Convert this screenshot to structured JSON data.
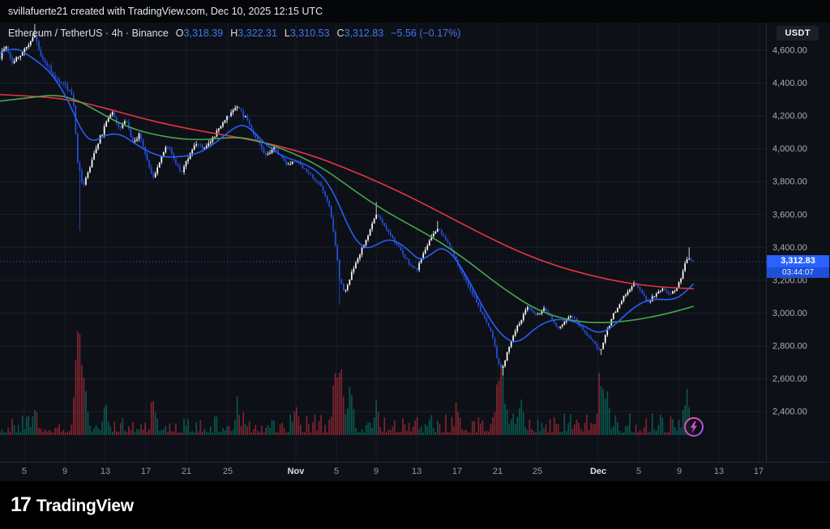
{
  "top_bar": {
    "attribution": "svillafuerte21 created with TradingView.com, Dec 10, 2025 12:15 UTC"
  },
  "legend": {
    "title": "Ethereum / TetherUS · 4h · Binance",
    "ohlc": [
      {
        "label": "O",
        "value": "3,318.39"
      },
      {
        "label": "H",
        "value": "3,322.31"
      },
      {
        "label": "L",
        "value": "3,310.53"
      },
      {
        "label": "C",
        "value": "3,312.83"
      }
    ],
    "change": "−5.56 (−0.17%)"
  },
  "price_axis": {
    "currency_button": "USDT",
    "last_price": {
      "label": "3,312.83",
      "value": 3312.83,
      "countdown": "03:44:07"
    }
  },
  "footer": {
    "logo_mark": "17",
    "brand": "TradingView"
  },
  "colors": {
    "accent_blue": "#2962ff",
    "candle_up": "#ffffff",
    "candle_down": "#2450e0",
    "ma_fast": "#2962ff",
    "ma_mid": "#4caf50",
    "ma_slow": "#f23645",
    "volume_up": "#089981",
    "volume_down": "#f23645",
    "legend_value": "#4277f2",
    "badge_bg": "#2962ff",
    "countdown_bg": "#1d4fd8"
  },
  "chart_data": {
    "type": "candlestick",
    "title": "Ethereum / TetherUS",
    "interval": "4h",
    "exchange": "Binance",
    "ylim": [
      2400,
      4600
    ],
    "last_candle": {
      "open": 3318.39,
      "high": 3322.31,
      "low": 3310.53,
      "close": 3312.83
    },
    "change": -5.56,
    "change_pct": -0.17,
    "price_ticks": [
      {
        "value": 4600,
        "label": "4,600.00"
      },
      {
        "value": 4400,
        "label": "4,400.00"
      },
      {
        "value": 4200,
        "label": "4,200.00"
      },
      {
        "value": 4000,
        "label": "4,000.00"
      },
      {
        "value": 3800,
        "label": "3,800.00"
      },
      {
        "value": 3600,
        "label": "3,600.00"
      },
      {
        "value": 3400,
        "label": "3,400.00"
      },
      {
        "value": 3200,
        "label": "3,200.00"
      },
      {
        "value": 3000,
        "label": "3,000.00"
      },
      {
        "value": 2800,
        "label": "2,800.00"
      },
      {
        "value": 2600,
        "label": "2,600.00"
      },
      {
        "value": 2400,
        "label": "2,400.00"
      }
    ],
    "time_ticks": [
      {
        "f": 0.0317,
        "label": "5"
      },
      {
        "f": 0.0847,
        "label": "9"
      },
      {
        "f": 0.1376,
        "label": "13"
      },
      {
        "f": 0.1905,
        "label": "17"
      },
      {
        "f": 0.2434,
        "label": "21"
      },
      {
        "f": 0.2974,
        "label": "25"
      },
      {
        "f": 0.3862,
        "label": "Nov",
        "major": true
      },
      {
        "f": 0.4392,
        "label": "5"
      },
      {
        "f": 0.491,
        "label": "9"
      },
      {
        "f": 0.544,
        "label": "13"
      },
      {
        "f": 0.5968,
        "label": "17"
      },
      {
        "f": 0.6497,
        "label": "21"
      },
      {
        "f": 0.7016,
        "label": "25"
      },
      {
        "f": 0.781,
        "label": "Dec",
        "major": true
      },
      {
        "f": 0.8339,
        "label": "5"
      },
      {
        "f": 0.8868,
        "label": "9"
      },
      {
        "f": 0.9386,
        "label": "13"
      },
      {
        "f": 0.9905,
        "label": "17"
      }
    ],
    "price_keyframes": [
      [
        0.0,
        4560
      ],
      [
        0.008,
        4630
      ],
      [
        0.018,
        4520
      ],
      [
        0.03,
        4580
      ],
      [
        0.042,
        4640
      ],
      [
        0.05,
        4700
      ],
      [
        0.06,
        4560
      ],
      [
        0.072,
        4480
      ],
      [
        0.085,
        4420
      ],
      [
        0.096,
        4380
      ],
      [
        0.105,
        4330
      ],
      [
        0.112,
        3920
      ],
      [
        0.12,
        3760
      ],
      [
        0.13,
        3900
      ],
      [
        0.14,
        4020
      ],
      [
        0.152,
        4150
      ],
      [
        0.162,
        4230
      ],
      [
        0.172,
        4120
      ],
      [
        0.182,
        4180
      ],
      [
        0.192,
        4030
      ],
      [
        0.202,
        4090
      ],
      [
        0.212,
        3930
      ],
      [
        0.222,
        3820
      ],
      [
        0.232,
        3950
      ],
      [
        0.242,
        4020
      ],
      [
        0.252,
        3920
      ],
      [
        0.262,
        3860
      ],
      [
        0.272,
        3950
      ],
      [
        0.282,
        4040
      ],
      [
        0.295,
        4000
      ],
      [
        0.31,
        4080
      ],
      [
        0.325,
        4180
      ],
      [
        0.343,
        4260
      ],
      [
        0.355,
        4180
      ],
      [
        0.365,
        4100
      ],
      [
        0.375,
        4020
      ],
      [
        0.385,
        3960
      ],
      [
        0.395,
        4010
      ],
      [
        0.405,
        3950
      ],
      [
        0.415,
        3900
      ],
      [
        0.427,
        3930
      ],
      [
        0.437,
        3880
      ],
      [
        0.447,
        3850
      ],
      [
        0.457,
        3800
      ],
      [
        0.467,
        3740
      ],
      [
        0.475,
        3650
      ],
      [
        0.483,
        3450
      ],
      [
        0.49,
        3200
      ],
      [
        0.497,
        3120
      ],
      [
        0.505,
        3220
      ],
      [
        0.515,
        3320
      ],
      [
        0.525,
        3420
      ],
      [
        0.535,
        3520
      ],
      [
        0.543,
        3610
      ],
      [
        0.553,
        3540
      ],
      [
        0.565,
        3460
      ],
      [
        0.578,
        3380
      ],
      [
        0.59,
        3300
      ],
      [
        0.601,
        3260
      ],
      [
        0.617,
        3420
      ],
      [
        0.632,
        3520
      ],
      [
        0.648,
        3420
      ],
      [
        0.66,
        3300
      ],
      [
        0.673,
        3180
      ],
      [
        0.686,
        3080
      ],
      [
        0.7,
        2960
      ],
      [
        0.712,
        2840
      ],
      [
        0.718,
        2700
      ],
      [
        0.725,
        2660
      ],
      [
        0.733,
        2780
      ],
      [
        0.742,
        2880
      ],
      [
        0.752,
        2960
      ],
      [
        0.76,
        3040
      ],
      [
        0.775,
        2980
      ],
      [
        0.785,
        3030
      ],
      [
        0.795,
        2970
      ],
      [
        0.805,
        2900
      ],
      [
        0.815,
        2950
      ],
      [
        0.825,
        2990
      ],
      [
        0.835,
        2930
      ],
      [
        0.845,
        2880
      ],
      [
        0.857,
        2820
      ],
      [
        0.866,
        2760
      ],
      [
        0.875,
        2890
      ],
      [
        0.885,
        2990
      ],
      [
        0.895,
        3060
      ],
      [
        0.905,
        3130
      ],
      [
        0.915,
        3190
      ],
      [
        0.925,
        3130
      ],
      [
        0.935,
        3070
      ],
      [
        0.945,
        3110
      ],
      [
        0.955,
        3150
      ],
      [
        0.965,
        3110
      ],
      [
        0.975,
        3140
      ],
      [
        0.982,
        3200
      ],
      [
        0.99,
        3330
      ],
      [
        1.0,
        3312.83
      ]
    ],
    "wick_events": [
      {
        "f": 0.05,
        "high": 4760
      },
      {
        "f": 0.115,
        "low": 3500
      },
      {
        "f": 0.49,
        "low": 3050
      },
      {
        "f": 0.543,
        "high": 3675
      },
      {
        "f": 0.632,
        "high": 3560
      },
      {
        "f": 0.725,
        "low": 2620
      },
      {
        "f": 0.866,
        "low": 2745
      },
      {
        "f": 0.993,
        "high": 3400
      }
    ],
    "volume_spikes": [
      {
        "f": 0.05,
        "h": 0.22
      },
      {
        "f": 0.112,
        "h": 1.0
      },
      {
        "f": 0.12,
        "h": 0.5
      },
      {
        "f": 0.152,
        "h": 0.25
      },
      {
        "f": 0.222,
        "h": 0.22
      },
      {
        "f": 0.343,
        "h": 0.2
      },
      {
        "f": 0.427,
        "h": 0.25
      },
      {
        "f": 0.483,
        "h": 0.5
      },
      {
        "f": 0.492,
        "h": 0.6
      },
      {
        "f": 0.505,
        "h": 0.35
      },
      {
        "f": 0.543,
        "h": 0.22
      },
      {
        "f": 0.66,
        "h": 0.2
      },
      {
        "f": 0.718,
        "h": 0.42
      },
      {
        "f": 0.725,
        "h": 0.45
      },
      {
        "f": 0.752,
        "h": 0.3
      },
      {
        "f": 0.866,
        "h": 0.45
      },
      {
        "f": 0.875,
        "h": 0.3
      },
      {
        "f": 0.99,
        "h": 0.3
      }
    ],
    "ma_lines": [
      {
        "name": "ma-slow",
        "color_key": "ma_slow",
        "points": [
          [
            0,
            4330
          ],
          [
            0.05,
            4320
          ],
          [
            0.1,
            4300
          ],
          [
            0.15,
            4250
          ],
          [
            0.2,
            4190
          ],
          [
            0.25,
            4140
          ],
          [
            0.3,
            4100
          ],
          [
            0.35,
            4065
          ],
          [
            0.4,
            4020
          ],
          [
            0.45,
            3960
          ],
          [
            0.5,
            3880
          ],
          [
            0.55,
            3790
          ],
          [
            0.6,
            3690
          ],
          [
            0.65,
            3580
          ],
          [
            0.7,
            3470
          ],
          [
            0.75,
            3370
          ],
          [
            0.8,
            3290
          ],
          [
            0.85,
            3230
          ],
          [
            0.9,
            3185
          ],
          [
            0.95,
            3158
          ],
          [
            1.0,
            3148
          ]
        ]
      },
      {
        "name": "ma-mid",
        "color_key": "ma_mid",
        "points": [
          [
            0,
            4290
          ],
          [
            0.04,
            4310
          ],
          [
            0.08,
            4330
          ],
          [
            0.11,
            4300
          ],
          [
            0.14,
            4230
          ],
          [
            0.17,
            4160
          ],
          [
            0.2,
            4110
          ],
          [
            0.23,
            4080
          ],
          [
            0.26,
            4060
          ],
          [
            0.29,
            4055
          ],
          [
            0.32,
            4065
          ],
          [
            0.35,
            4070
          ],
          [
            0.38,
            4040
          ],
          [
            0.41,
            3995
          ],
          [
            0.44,
            3940
          ],
          [
            0.47,
            3870
          ],
          [
            0.5,
            3780
          ],
          [
            0.53,
            3690
          ],
          [
            0.56,
            3610
          ],
          [
            0.59,
            3540
          ],
          [
            0.62,
            3470
          ],
          [
            0.65,
            3390
          ],
          [
            0.68,
            3300
          ],
          [
            0.71,
            3200
          ],
          [
            0.74,
            3110
          ],
          [
            0.77,
            3030
          ],
          [
            0.8,
            2980
          ],
          [
            0.83,
            2950
          ],
          [
            0.86,
            2940
          ],
          [
            0.89,
            2945
          ],
          [
            0.92,
            2960
          ],
          [
            0.95,
            2985
          ],
          [
            0.975,
            3010
          ],
          [
            1.0,
            3040
          ]
        ]
      },
      {
        "name": "ma-fast",
        "color_key": "ma_fast",
        "points": [
          [
            0,
            4580
          ],
          [
            0.02,
            4625
          ],
          [
            0.045,
            4560
          ],
          [
            0.07,
            4480
          ],
          [
            0.09,
            4360
          ],
          [
            0.105,
            4230
          ],
          [
            0.12,
            4090
          ],
          [
            0.135,
            4040
          ],
          [
            0.155,
            4090
          ],
          [
            0.175,
            4090
          ],
          [
            0.195,
            4030
          ],
          [
            0.215,
            3980
          ],
          [
            0.235,
            3950
          ],
          [
            0.255,
            3950
          ],
          [
            0.275,
            3960
          ],
          [
            0.295,
            3990
          ],
          [
            0.315,
            4050
          ],
          [
            0.335,
            4120
          ],
          [
            0.35,
            4150
          ],
          [
            0.365,
            4110
          ],
          [
            0.38,
            4040
          ],
          [
            0.395,
            3990
          ],
          [
            0.41,
            3950
          ],
          [
            0.425,
            3930
          ],
          [
            0.44,
            3905
          ],
          [
            0.455,
            3870
          ],
          [
            0.47,
            3810
          ],
          [
            0.485,
            3700
          ],
          [
            0.5,
            3550
          ],
          [
            0.515,
            3430
          ],
          [
            0.53,
            3390
          ],
          [
            0.545,
            3420
          ],
          [
            0.56,
            3450
          ],
          [
            0.575,
            3430
          ],
          [
            0.59,
            3380
          ],
          [
            0.605,
            3320
          ],
          [
            0.62,
            3350
          ],
          [
            0.635,
            3400
          ],
          [
            0.65,
            3370
          ],
          [
            0.665,
            3280
          ],
          [
            0.68,
            3170
          ],
          [
            0.695,
            3050
          ],
          [
            0.71,
            2940
          ],
          [
            0.725,
            2860
          ],
          [
            0.74,
            2820
          ],
          [
            0.755,
            2840
          ],
          [
            0.77,
            2900
          ],
          [
            0.785,
            2940
          ],
          [
            0.8,
            2960
          ],
          [
            0.815,
            2960
          ],
          [
            0.83,
            2945
          ],
          [
            0.845,
            2915
          ],
          [
            0.86,
            2880
          ],
          [
            0.875,
            2890
          ],
          [
            0.89,
            2940
          ],
          [
            0.905,
            3000
          ],
          [
            0.92,
            3050
          ],
          [
            0.935,
            3080
          ],
          [
            0.95,
            3085
          ],
          [
            0.965,
            3080
          ],
          [
            0.98,
            3095
          ],
          [
            1.0,
            3175
          ]
        ]
      }
    ]
  }
}
